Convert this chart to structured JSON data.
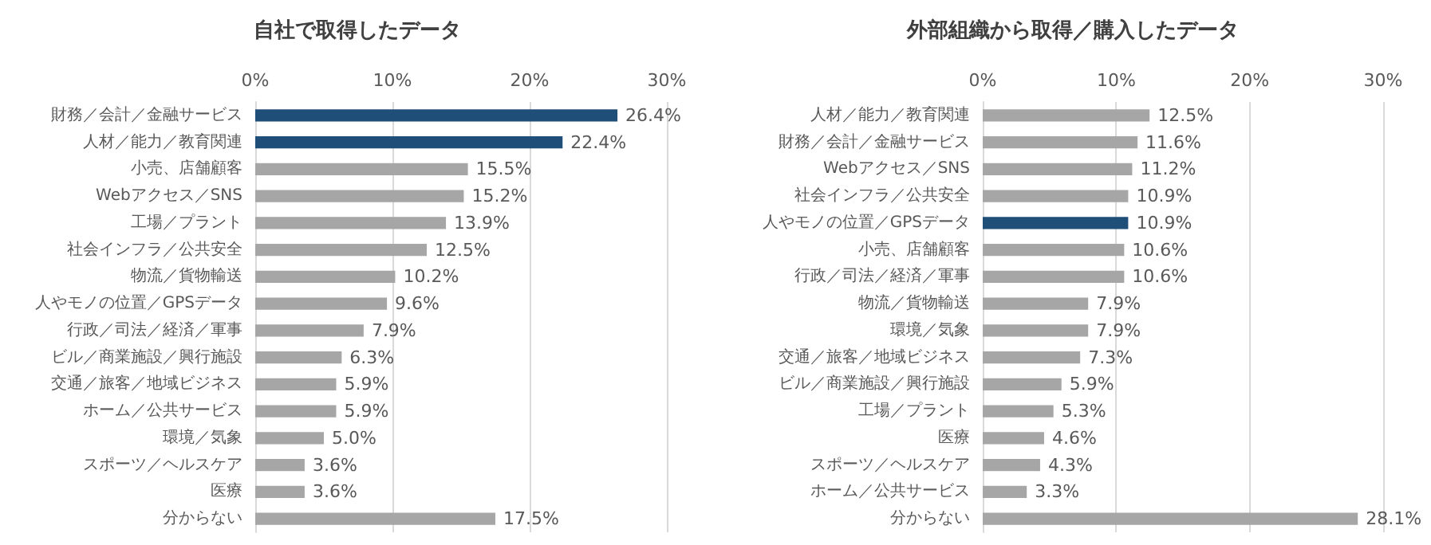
{
  "chart_data": [
    {
      "type": "bar",
      "orientation": "horizontal",
      "title": "自社で取得したデータ",
      "categories": [
        "財務／会計／金融サービス",
        "人材／能力／教育関連",
        "小売、店舗顧客",
        "Webアクセス／SNS",
        "工場／プラント",
        "社会インフラ／公共安全",
        "物流／貨物輸送",
        "人やモノの位置／GPSデータ",
        "行政／司法／経済／軍事",
        "ビル／商業施設／興行施設",
        "交通／旅客／地域ビジネス",
        "ホーム／公共サービス",
        "環境／気象",
        "スポーツ／ヘルスケア",
        "医療",
        "分からない"
      ],
      "values": [
        26.4,
        22.4,
        15.5,
        15.2,
        13.9,
        12.5,
        10.2,
        9.6,
        7.9,
        6.3,
        5.9,
        5.9,
        5.0,
        3.6,
        3.6,
        17.5
      ],
      "value_labels": [
        "26.4%",
        "22.4%",
        "15.5%",
        "15.2%",
        "13.9%",
        "12.5%",
        "10.2%",
        "9.6%",
        "7.9%",
        "6.3%",
        "5.9%",
        "5.9%",
        "5.0%",
        "3.6%",
        "3.6%",
        "17.5%"
      ],
      "colors": [
        "#1f4e79",
        "#1f4e79",
        "#a6a6a6",
        "#a6a6a6",
        "#a6a6a6",
        "#a6a6a6",
        "#a6a6a6",
        "#a6a6a6",
        "#a6a6a6",
        "#a6a6a6",
        "#a6a6a6",
        "#a6a6a6",
        "#a6a6a6",
        "#a6a6a6",
        "#a6a6a6",
        "#a6a6a6"
      ],
      "xlim": [
        0,
        30
      ],
      "xticks": [
        {
          "value": 0,
          "label": "0%"
        },
        {
          "value": 10,
          "label": "10%"
        },
        {
          "value": 20,
          "label": "20%"
        },
        {
          "value": 30,
          "label": "30%"
        }
      ],
      "grid": "x"
    },
    {
      "type": "bar",
      "orientation": "horizontal",
      "title": "外部組織から取得／購入したデータ",
      "categories": [
        "人材／能力／教育関連",
        "財務／会計／金融サービス",
        "Webアクセス／SNS",
        "社会インフラ／公共安全",
        "人やモノの位置／GPSデータ",
        "小売、店舗顧客",
        "行政／司法／経済／軍事",
        "物流／貨物輸送",
        "環境／気象",
        "交通／旅客／地域ビジネス",
        "ビル／商業施設／興行施設",
        "工場／プラント",
        "医療",
        "スポーツ／ヘルスケア",
        "ホーム／公共サービス",
        "分からない"
      ],
      "values": [
        12.5,
        11.6,
        11.2,
        10.9,
        10.9,
        10.6,
        10.6,
        7.9,
        7.9,
        7.3,
        5.9,
        5.3,
        4.6,
        4.3,
        3.3,
        28.1
      ],
      "value_labels": [
        "12.5%",
        "11.6%",
        "11.2%",
        "10.9%",
        "10.9%",
        "10.6%",
        "10.6%",
        "7.9%",
        "7.9%",
        "7.3%",
        "5.9%",
        "5.3%",
        "4.6%",
        "4.3%",
        "3.3%",
        "28.1%"
      ],
      "colors": [
        "#a6a6a6",
        "#a6a6a6",
        "#a6a6a6",
        "#a6a6a6",
        "#1f4e79",
        "#a6a6a6",
        "#a6a6a6",
        "#a6a6a6",
        "#a6a6a6",
        "#a6a6a6",
        "#a6a6a6",
        "#a6a6a6",
        "#a6a6a6",
        "#a6a6a6",
        "#a6a6a6",
        "#a6a6a6"
      ],
      "xlim": [
        0,
        30
      ],
      "xticks": [
        {
          "value": 0,
          "label": "0%"
        },
        {
          "value": 10,
          "label": "10%"
        },
        {
          "value": 20,
          "label": "20%"
        },
        {
          "value": 30,
          "label": "30%"
        }
      ],
      "grid": "x"
    }
  ]
}
